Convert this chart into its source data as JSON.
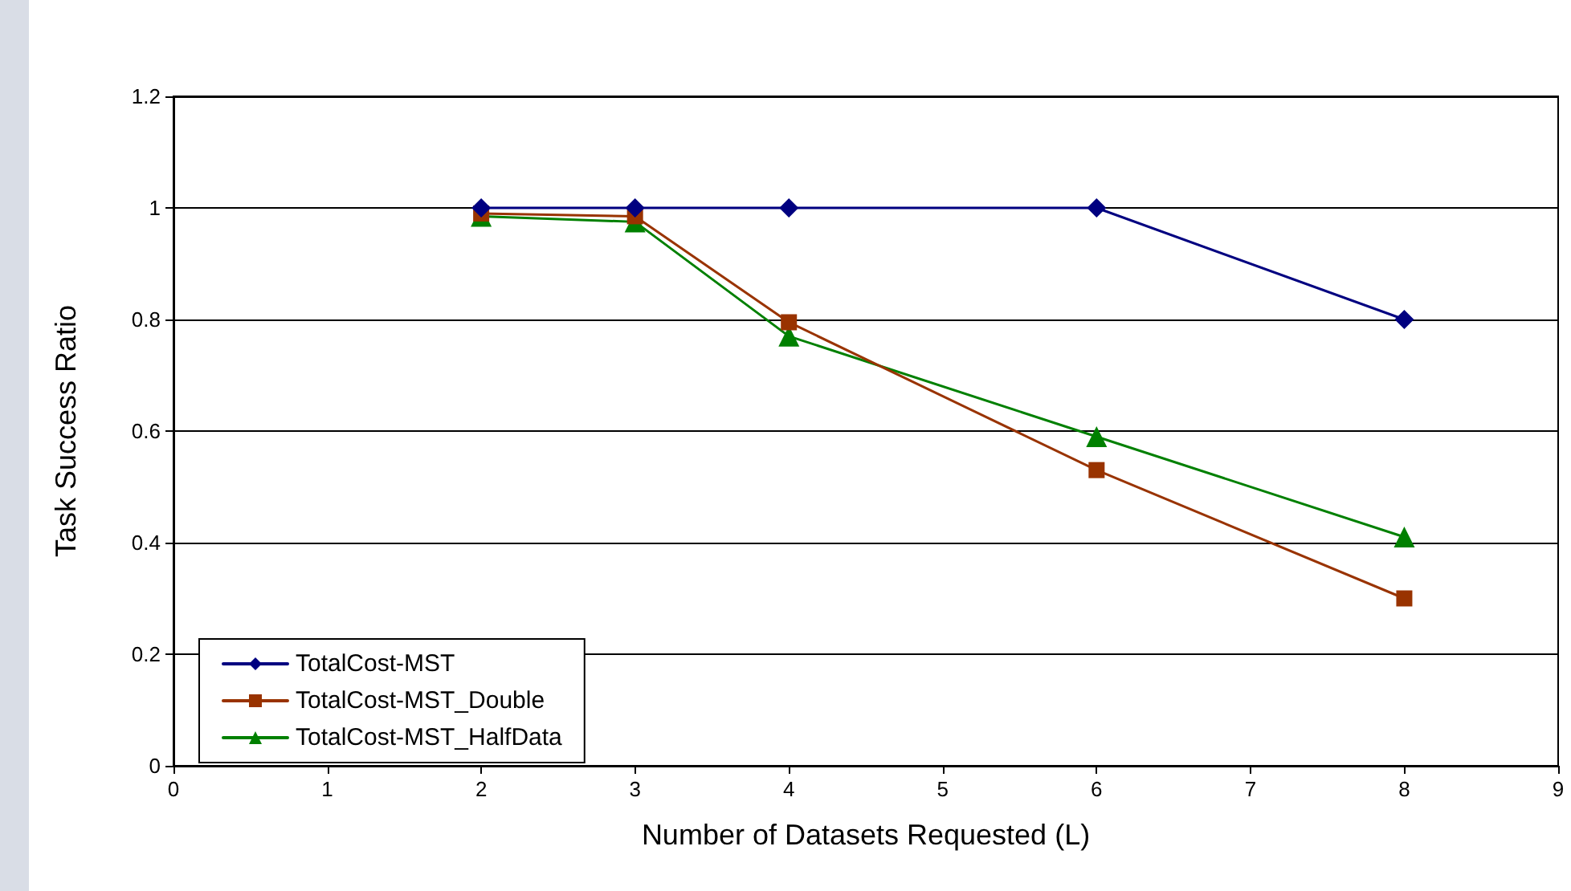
{
  "chart_data": {
    "type": "line",
    "xlabel": "Number of Datasets Requested (L)",
    "ylabel": "Task Success Ratio",
    "x": [
      2,
      3,
      4,
      6,
      8
    ],
    "series": [
      {
        "name": "TotalCost-MST",
        "color": "#000080",
        "marker": "diamond",
        "values": [
          1,
          1,
          1,
          1,
          0.8
        ]
      },
      {
        "name": "TotalCost-MST_Double",
        "color": "#993300",
        "marker": "square",
        "values": [
          0.99,
          0.985,
          0.795,
          0.53,
          0.3
        ]
      },
      {
        "name": "TotalCost-MST_HalfData",
        "color": "#008000",
        "marker": "triangle",
        "values": [
          0.985,
          0.975,
          0.77,
          0.59,
          0.41
        ]
      }
    ],
    "xlim": [
      0,
      9
    ],
    "xticks": [
      0,
      1,
      2,
      3,
      4,
      5,
      6,
      7,
      8,
      9
    ],
    "ylim": [
      0,
      1.2
    ],
    "yticks": [
      0,
      0.2,
      0.4,
      0.6,
      0.8,
      1,
      1.2
    ],
    "grid": "y",
    "legend": "bottom left",
    "line_style": "solid"
  }
}
